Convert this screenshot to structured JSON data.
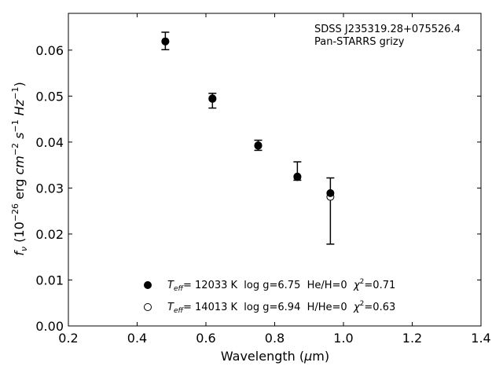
{
  "chart_data": {
    "type": "scatter",
    "annotation": [
      "SDSS J235319.28+075526.4",
      "Pan-STARRS grizy"
    ],
    "xlabel": "Wavelength (μm)",
    "ylabel": "f_ν (10^−26 erg cm^−2 s^−1 Hz^−1)",
    "xlim": [
      0.2,
      1.4
    ],
    "ylim": [
      0.0,
      0.068
    ],
    "xticks": [
      0.2,
      0.4,
      0.6,
      0.8,
      1.0,
      1.2,
      1.4
    ],
    "xtick_labels": [
      "0.2",
      "0.4",
      "0.6",
      "0.8",
      "1.0",
      "1.2",
      "1.4"
    ],
    "yticks": [
      0.0,
      0.01,
      0.02,
      0.03,
      0.04,
      0.05,
      0.06
    ],
    "ytick_labels": [
      "0.00",
      "0.01",
      "0.02",
      "0.03",
      "0.04",
      "0.05",
      "0.06"
    ],
    "grid": false,
    "legend_placement": "bottom-center",
    "observed": {
      "x": [
        0.482,
        0.619,
        0.752,
        0.866,
        0.962
      ],
      "y": [
        0.062,
        0.049,
        0.0393,
        0.0337,
        0.025
      ],
      "yerr": [
        0.0019,
        0.0016,
        0.0011,
        0.002,
        0.0072
      ]
    },
    "series": [
      {
        "marker": "filled",
        "x": [
          0.482,
          0.619,
          0.752,
          0.866,
          0.962
        ],
        "y": [
          0.0619,
          0.0495,
          0.0393,
          0.0325,
          0.0289
        ],
        "label_parts": {
          "t": "T",
          "sub": "eff",
          "rest": "= 12033 K  log g=6.75  He/H=0  ",
          "chi": "χ",
          "sup": "2",
          "end": "=0.71"
        }
      },
      {
        "marker": "open",
        "x": [
          0.482,
          0.619,
          0.752,
          0.866,
          0.962
        ],
        "y": [
          0.0619,
          0.0494,
          0.0392,
          0.0324,
          0.0281
        ],
        "label_parts": {
          "t": "T",
          "sub": "eff",
          "rest": "= 14013 K  log g=6.94  H/He=0  ",
          "chi": "χ",
          "sup": "2",
          "end": "=0.63"
        }
      }
    ]
  }
}
